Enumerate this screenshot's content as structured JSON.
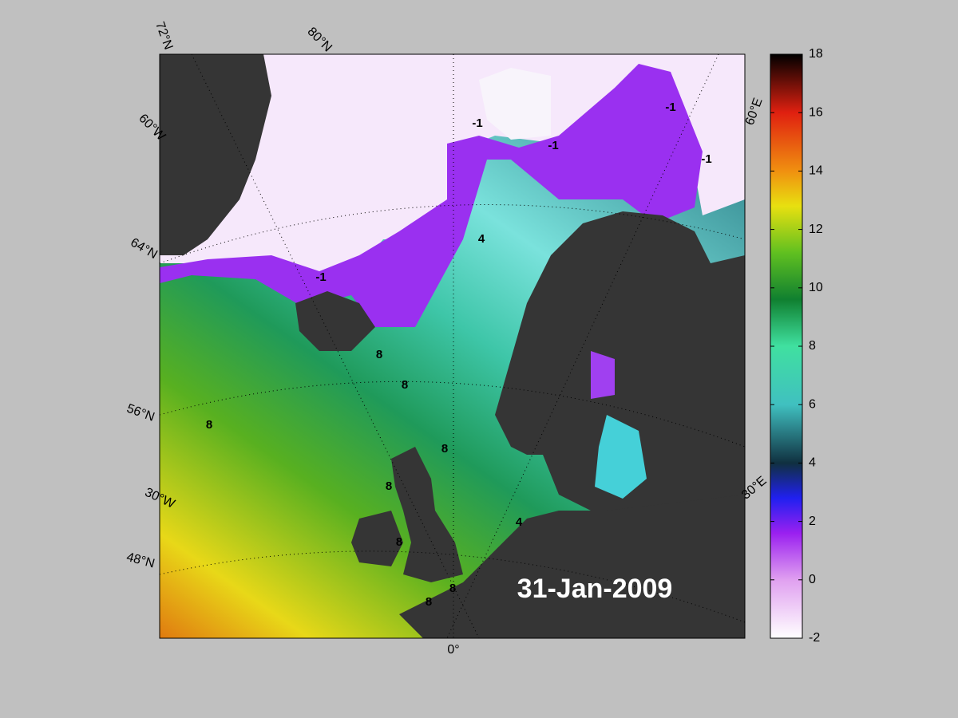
{
  "map": {
    "date_label": "31-Jan-2009",
    "grid_labels": [
      "72°N",
      "80°N",
      "60°W",
      "64°N",
      "56°N",
      "30°W",
      "48°N",
      "0°",
      "60°E",
      "30°E"
    ],
    "contour_labels": [
      "-1",
      "-1",
      "-1",
      "-1",
      "-1",
      "4",
      "4",
      "8",
      "8",
      "8",
      "8",
      "8",
      "8",
      "8",
      "8"
    ]
  },
  "colorbar": {
    "lim": [
      -2,
      18
    ],
    "ticks": [
      -2,
      0,
      2,
      4,
      6,
      8,
      10,
      12,
      14,
      16,
      18
    ]
  }
}
